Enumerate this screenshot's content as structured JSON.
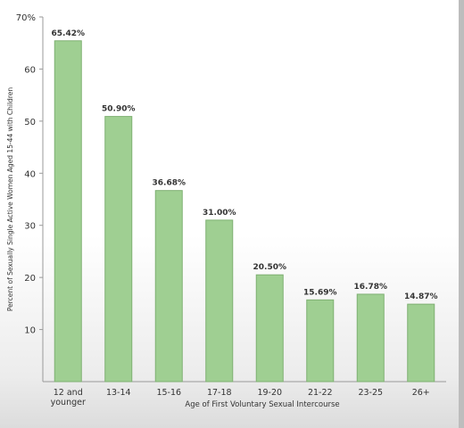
{
  "chart_data": {
    "type": "bar",
    "xlabel": "Age of First Voluntary Sexual Intercourse",
    "ylabel": "Percent of Sexually Single Active Women Aged 15-44 with Children",
    "ylim": [
      0,
      70
    ],
    "y_ticks": [
      "10",
      "20",
      "30",
      "40",
      "50",
      "60",
      "70%"
    ],
    "y_tick_values": [
      10,
      20,
      30,
      40,
      50,
      60,
      70
    ],
    "categories": [
      "12 and younger",
      "13-14",
      "15-16",
      "17-18",
      "19-20",
      "21-22",
      "23-25",
      "26+"
    ],
    "category_lines": [
      [
        "12 and",
        "younger"
      ],
      [
        "13-14"
      ],
      [
        "15-16"
      ],
      [
        "17-18"
      ],
      [
        "19-20"
      ],
      [
        "21-22"
      ],
      [
        "23-25"
      ],
      [
        "26+"
      ]
    ],
    "values": [
      65.42,
      50.9,
      36.68,
      31.0,
      20.5,
      15.69,
      16.78,
      14.87
    ],
    "data_labels": [
      "65.42%",
      "50.90%",
      "36.68%",
      "31.00%",
      "20.50%",
      "15.69%",
      "16.78%",
      "14.87%"
    ],
    "bar_color": "#9fcf92",
    "bar_edge_color": "#7fb072",
    "grid": false
  }
}
